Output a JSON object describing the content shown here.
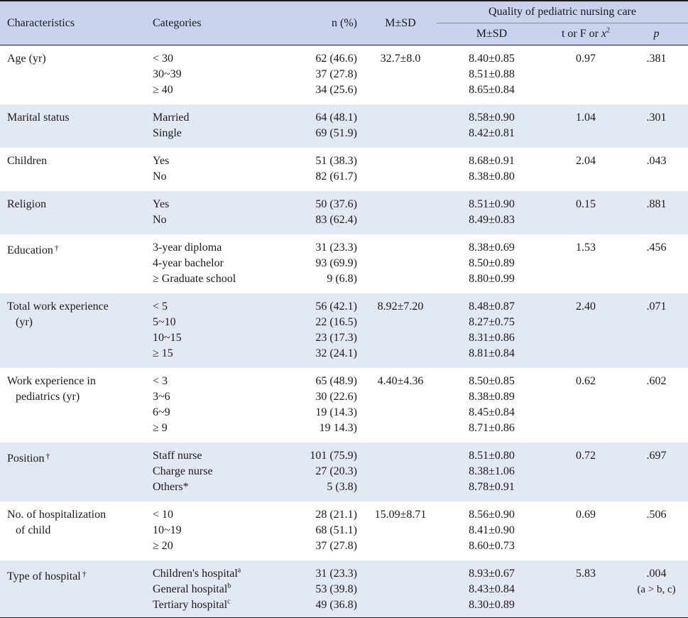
{
  "header": {
    "characteristics": "Characteristics",
    "categories": "Categories",
    "n_pct": "n (%)",
    "msd": "M±SD",
    "quality": "Quality of pediatric nursing care",
    "q_msd": "M±SD",
    "t_or_f": "t or F or ",
    "chi": "x",
    "chi_sup": "2",
    "p": "p"
  },
  "rows": [
    {
      "char": [
        "Age (yr)"
      ],
      "mark": "",
      "cats": [
        "< 30",
        "30~39",
        "≥ 40"
      ],
      "n": [
        "62 (46.6)",
        "37 (27.8)",
        "34 (25.6)"
      ],
      "msd": "32.7±8.0",
      "qmsd": [
        "8.40±0.85",
        "8.51±0.88",
        "8.65±0.84"
      ],
      "t": "0.97",
      "p": [
        ".381"
      ]
    },
    {
      "char": [
        "Marital status"
      ],
      "mark": "",
      "cats": [
        "Married",
        "Single"
      ],
      "n": [
        "64 (48.1)",
        "69 (51.9)"
      ],
      "msd": "",
      "qmsd": [
        "8.58±0.90",
        "8.42±0.81"
      ],
      "t": "1.04",
      "p": [
        ".301"
      ]
    },
    {
      "char": [
        "Children"
      ],
      "mark": "",
      "cats": [
        "Yes",
        "No"
      ],
      "n": [
        "51 (38.3)",
        "82 (61.7)"
      ],
      "msd": "",
      "qmsd": [
        "8.68±0.91",
        "8.38±0.80"
      ],
      "t": "2.04",
      "p": [
        ".043"
      ]
    },
    {
      "char": [
        "Religion"
      ],
      "mark": "",
      "cats": [
        "Yes",
        "No"
      ],
      "n": [
        "50 (37.6)",
        "83 (62.4)"
      ],
      "msd": "",
      "qmsd": [
        "8.51±0.90",
        "8.49±0.83"
      ],
      "t": "0.15",
      "p": [
        ".881"
      ]
    },
    {
      "char": [
        "Education"
      ],
      "mark": "†",
      "cats": [
        "3-year diploma",
        "4-year bachelor",
        "≥ Graduate school"
      ],
      "n": [
        "31 (23.3)",
        "93 (69.9)",
        "9 (6.8)"
      ],
      "msd": "",
      "qmsd": [
        "8.38±0.69",
        "8.50±0.89",
        "8.80±0.99"
      ],
      "t": "1.53",
      "p": [
        ".456"
      ]
    },
    {
      "char": [
        "Total work experience",
        "(yr)"
      ],
      "mark": "",
      "cats": [
        "< 5",
        "5~10",
        "10~15",
        "≥ 15"
      ],
      "n": [
        "56 (42.1)",
        "22 (16.5)",
        "23 (17.3)",
        "32 (24.1)"
      ],
      "msd": "8.92±7.20",
      "qmsd": [
        "8.48±0.87",
        "8.27±0.75",
        "8.31±0.86",
        "8.81±0.84"
      ],
      "t": "2.40",
      "p": [
        ".071"
      ]
    },
    {
      "char": [
        "Work experience in",
        "pediatrics (yr)"
      ],
      "mark": "",
      "cats": [
        "< 3",
        "3~6",
        "6~9",
        "≥ 9"
      ],
      "n": [
        "65 (48.9)",
        "30 (22.6)",
        "19 (14.3)",
        "19 14.3)"
      ],
      "msd": "4.40±4.36",
      "qmsd": [
        "8.50±0.85",
        "8.38±0.89",
        "8.45±0.84",
        "8.71±0.86"
      ],
      "t": "0.62",
      "p": [
        ".602"
      ]
    },
    {
      "char": [
        "Position"
      ],
      "mark": "†",
      "cats": [
        "Staff nurse",
        "Charge nurse",
        "Others*"
      ],
      "n": [
        "101 (75.9)",
        "27 (20.3)",
        "5 (3.8)"
      ],
      "msd": "",
      "qmsd": [
        "8.51±0.80",
        "8.38±1.06",
        "8.78±0.91"
      ],
      "t": "0.72",
      "p": [
        ".697"
      ]
    },
    {
      "char": [
        "No. of hospitalization",
        "of child"
      ],
      "mark": "",
      "cats": [
        "< 10",
        "10~19",
        "≥ 20"
      ],
      "n": [
        "28 (21.1)",
        "68 (51.1)",
        "37 (27.8)"
      ],
      "msd": "15.09±8.71",
      "qmsd": [
        "8.56±0.90",
        "8.41±0.90",
        "8.60±0.73"
      ],
      "t": "0.69",
      "p": [
        ".506"
      ]
    },
    {
      "char": [
        "Type of hospital"
      ],
      "mark": "†",
      "cats": [
        "Children's hospital",
        "General hospital",
        "Tertiary hospital"
      ],
      "cat_sups": [
        "a",
        "b",
        "c"
      ],
      "n": [
        "31 (23.3)",
        "53 (39.8)",
        "49 (36.8)"
      ],
      "msd": "",
      "qmsd": [
        "8.93±0.67",
        "8.43±0.84",
        "8.30±0.89"
      ],
      "t": "5.83",
      "p": [
        ".004",
        "(a > b, c)"
      ]
    }
  ]
}
